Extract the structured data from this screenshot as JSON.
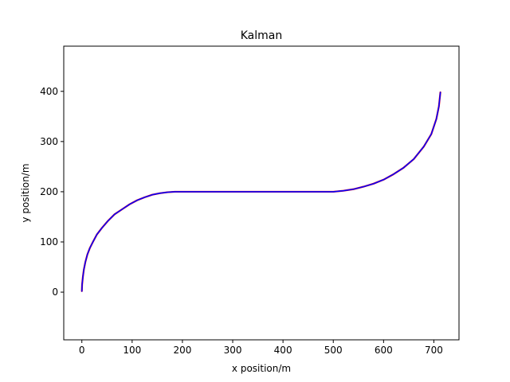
{
  "chart_data": {
    "type": "line",
    "title": "Kalman",
    "xlabel": "x position/m",
    "ylabel": "y position/m",
    "xlim": [
      -36,
      750
    ],
    "ylim": [
      -95,
      490
    ],
    "xticks": [
      0,
      100,
      200,
      300,
      400,
      500,
      600,
      700
    ],
    "yticks": [
      0,
      100,
      200,
      300,
      400
    ],
    "grid": false,
    "series": [
      {
        "color": "#ff0000",
        "x": [
          0,
          0.5,
          2,
          4,
          7,
          11,
          16,
          22,
          30,
          40,
          52,
          65,
          80,
          95,
          110,
          125,
          140,
          155,
          170,
          185,
          200,
          230,
          260,
          300,
          340,
          380,
          420,
          460,
          500,
          520,
          540,
          560,
          580,
          600,
          620,
          640,
          660,
          680,
          695,
          705,
          710,
          713
        ],
        "y": [
          2,
          15,
          30,
          45,
          60,
          75,
          88,
          100,
          115,
          128,
          142,
          155,
          165,
          175,
          183,
          189,
          194,
          197,
          199,
          200,
          200,
          200,
          200,
          200,
          200,
          200,
          200,
          200,
          200,
          202,
          205,
          210,
          216,
          224,
          235,
          248,
          265,
          290,
          315,
          345,
          370,
          398
        ]
      },
      {
        "color": "#0000ff",
        "x": [
          0,
          0.5,
          2,
          4,
          7,
          11,
          16,
          22,
          30,
          40,
          52,
          65,
          80,
          95,
          110,
          125,
          140,
          155,
          170,
          185,
          200,
          230,
          260,
          300,
          340,
          380,
          420,
          460,
          500,
          520,
          540,
          560,
          580,
          600,
          620,
          640,
          660,
          680,
          695,
          705,
          710,
          713
        ],
        "y": [
          2,
          15,
          30,
          45,
          60,
          75,
          88,
          100,
          115,
          128,
          142,
          155,
          165,
          175,
          183,
          189,
          194,
          197,
          199,
          200,
          200,
          200,
          200,
          200,
          200,
          200,
          200,
          200,
          200,
          202,
          205,
          210,
          216,
          224,
          235,
          248,
          265,
          290,
          315,
          345,
          370,
          398
        ]
      }
    ]
  }
}
